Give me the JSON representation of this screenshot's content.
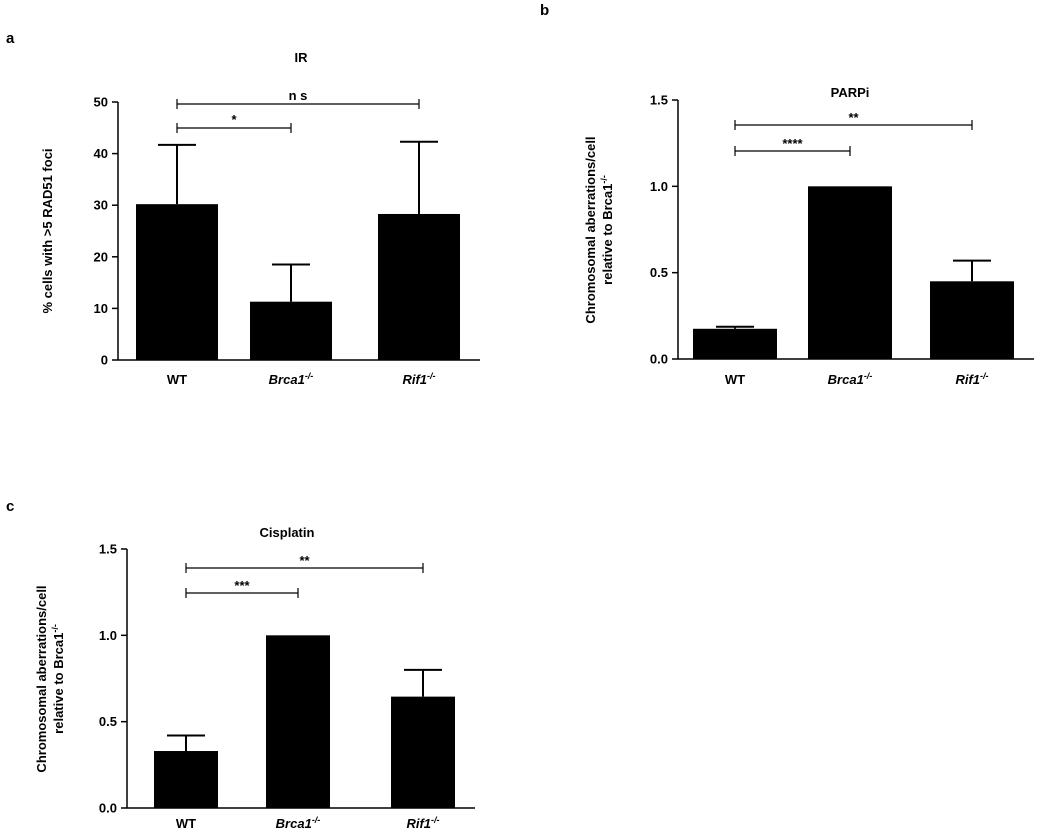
{
  "chart_data": [
    {
      "panel": "a",
      "type": "bar",
      "title": "IR",
      "ylabel_lines": [
        "% cells with >5 RAD51 foci"
      ],
      "categories": [
        {
          "base": "WT",
          "sup": "",
          "italic": false
        },
        {
          "base": "Brca1",
          "sup": "-/-",
          "italic": true
        },
        {
          "base": "Rif1",
          "sup": "-/-",
          "italic": true
        }
      ],
      "values": [
        30.2,
        11.3,
        28.3
      ],
      "errors": [
        11.5,
        7.2,
        14.0
      ],
      "ylim": [
        0,
        50
      ],
      "yticks": [
        "0",
        "10",
        "20",
        "30",
        "40",
        "50"
      ],
      "significance": [
        {
          "from": 0,
          "to": 1,
          "label": "*"
        },
        {
          "from": 0,
          "to": 2,
          "label": "n s"
        }
      ]
    },
    {
      "panel": "b",
      "type": "bar",
      "title": "PARPi",
      "ylabel_lines": [
        "Chromosomal aberrations/cell",
        "relative to Brca1"
      ],
      "ylabel_sup": "-/-",
      "categories": [
        {
          "base": "WT",
          "sup": "",
          "italic": false
        },
        {
          "base": "Brca1",
          "sup": "-/-",
          "italic": true
        },
        {
          "base": "Rif1",
          "sup": "-/-",
          "italic": true
        }
      ],
      "values": [
        0.175,
        1.0,
        0.45
      ],
      "errors": [
        0.012,
        0.0,
        0.12
      ],
      "ylim": [
        0,
        1.5
      ],
      "yticks": [
        "0.0",
        "0.5",
        "1.0",
        "1.5"
      ],
      "significance": [
        {
          "from": 0,
          "to": 1,
          "label": "****"
        },
        {
          "from": 0,
          "to": 2,
          "label": "**"
        }
      ]
    },
    {
      "panel": "c",
      "type": "bar",
      "title": "Cisplatin",
      "ylabel_lines": [
        "Chromosomal aberrations/cell",
        "relative to Brca1"
      ],
      "ylabel_sup": "-/-",
      "categories": [
        {
          "base": "WT",
          "sup": "",
          "italic": false
        },
        {
          "base": "Brca1",
          "sup": "-/-",
          "italic": true
        },
        {
          "base": "Rif1",
          "sup": "-/-",
          "italic": true
        }
      ],
      "values": [
        0.33,
        1.0,
        0.645
      ],
      "errors": [
        0.09,
        0.0,
        0.155
      ],
      "ylim": [
        0,
        1.5
      ],
      "yticks": [
        "0.0",
        "0.5",
        "1.0",
        "1.5"
      ],
      "significance": [
        {
          "from": 0,
          "to": 1,
          "label": "***"
        },
        {
          "from": 0,
          "to": 2,
          "label": "**"
        }
      ]
    }
  ]
}
